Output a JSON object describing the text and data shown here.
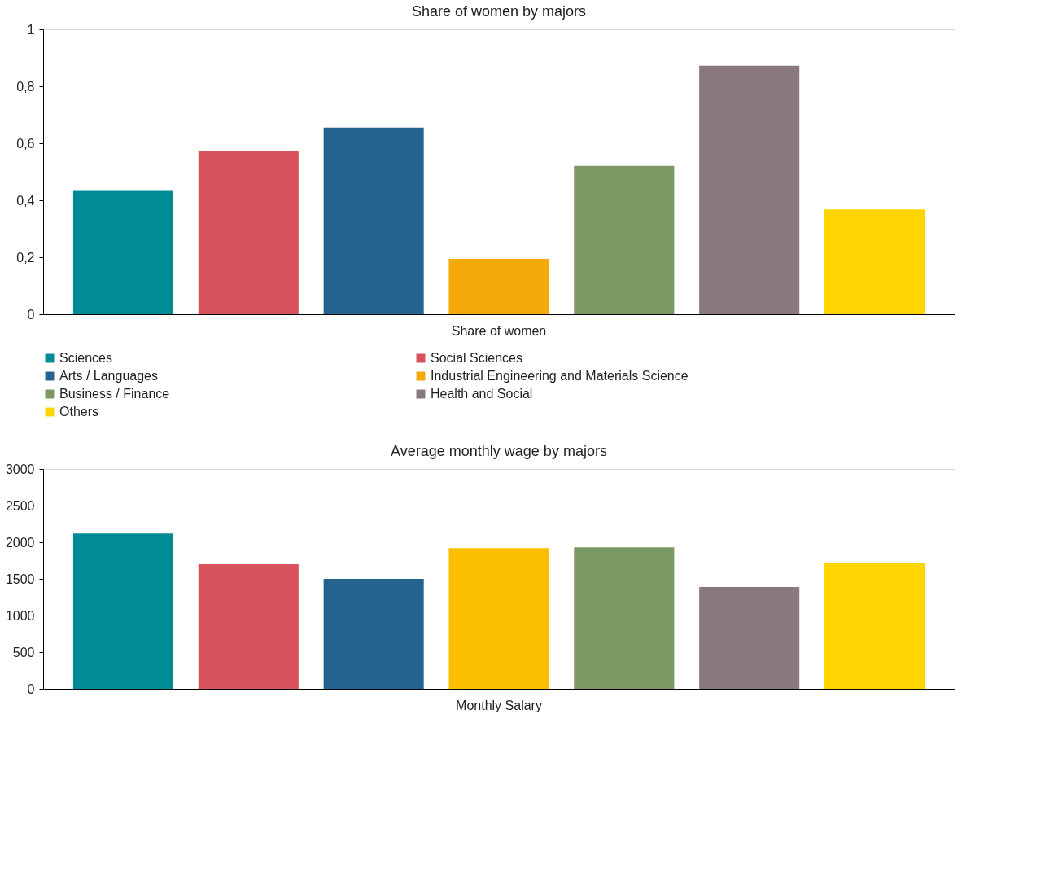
{
  "chart_data": [
    {
      "type": "bar",
      "title": "Share of women by majors",
      "categories": [
        "Share of women"
      ],
      "ylim": [
        0,
        1
      ],
      "yticks": [
        0,
        {
          "value": 0.2,
          "label": "0,2"
        },
        {
          "value": 0.4,
          "label": "0,4"
        },
        {
          "value": 0.6,
          "label": "0,6"
        },
        {
          "value": 0.8,
          "label": "0,8"
        },
        1
      ],
      "grid": false,
      "legend": "bottom",
      "series": [
        {
          "name": "Sciences",
          "color": "#008b95",
          "values": [
            0.436
          ]
        },
        {
          "name": "Social Sciences",
          "color": "#d8525c",
          "values": [
            0.573
          ]
        },
        {
          "name": "Arts / Languages",
          "color": "#24628f",
          "values": [
            0.655
          ]
        },
        {
          "name": "Industrial Engineering and Materials Science",
          "color": "#f5a90a",
          "values": [
            0.194
          ]
        },
        {
          "name": "Business / Finance",
          "color": "#7b9862",
          "values": [
            0.521
          ]
        },
        {
          "name": "Health and Social",
          "color": "#89787d",
          "values": [
            0.872
          ]
        },
        {
          "name": "Others",
          "color": "#ffd500",
          "values": [
            0.368
          ]
        }
      ]
    },
    {
      "type": "bar",
      "title": "Average monthly wage by majors",
      "categories": [
        "Monthly Salary"
      ],
      "ylim": [
        0,
        3000
      ],
      "yticks": [
        0,
        500,
        1000,
        1500,
        2000,
        2500,
        3000
      ],
      "grid": false,
      "legend": false,
      "series": [
        {
          "color": "#008b95",
          "values": [
            2120
          ]
        },
        {
          "color": "#d8525c",
          "values": [
            1700
          ]
        },
        {
          "color": "#24628f",
          "values": [
            1500
          ]
        },
        {
          "color": "#fcbf00",
          "values": [
            1920
          ]
        },
        {
          "color": "#7b9862",
          "values": [
            1930
          ]
        },
        {
          "color": "#89787d",
          "values": [
            1390
          ]
        },
        {
          "color": "#ffd500",
          "values": [
            1710
          ]
        }
      ]
    }
  ]
}
